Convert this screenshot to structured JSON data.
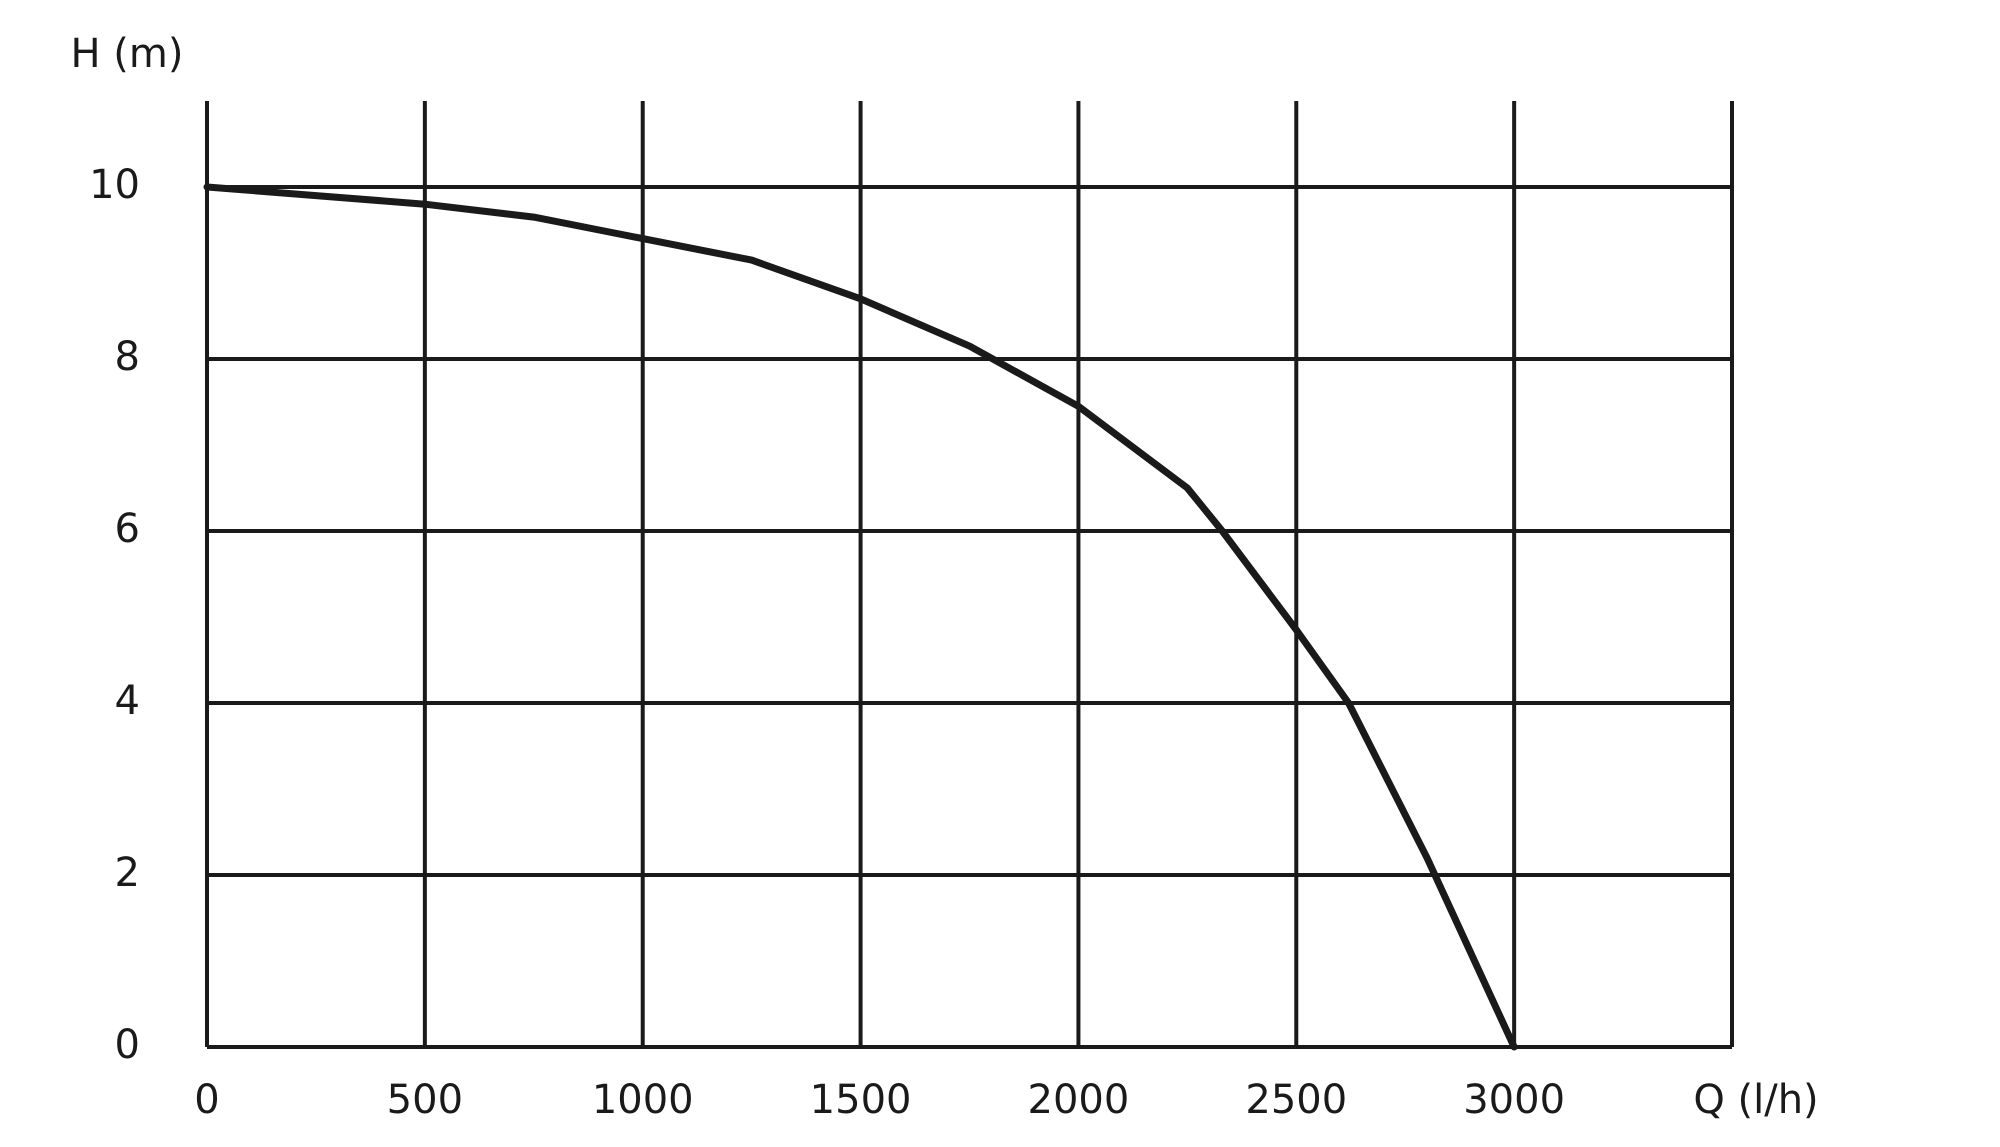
{
  "chart_data": {
    "type": "line",
    "y_label": "H (m)",
    "x_label": "Q (l/h)",
    "x": [
      0,
      250,
      500,
      750,
      900,
      1000,
      1250,
      1500,
      1750,
      2000,
      2250,
      2330,
      2500,
      2620,
      2800,
      3000
    ],
    "series": [
      {
        "color": "#1a1a1a",
        "values": [
          10,
          9.9,
          9.8,
          9.65,
          9.5,
          9.4,
          9.15,
          8.7,
          8.15,
          7.45,
          6.5,
          6.0,
          4.85,
          4.0,
          2.2,
          0
        ]
      }
    ],
    "xlim": [
      0,
      3500
    ],
    "ylim": [
      0,
      11
    ],
    "xticks": [
      0,
      500,
      1000,
      1500,
      2000,
      2500,
      3000
    ],
    "yticks": [
      0,
      2,
      4,
      6,
      8,
      10
    ],
    "grid": true
  }
}
